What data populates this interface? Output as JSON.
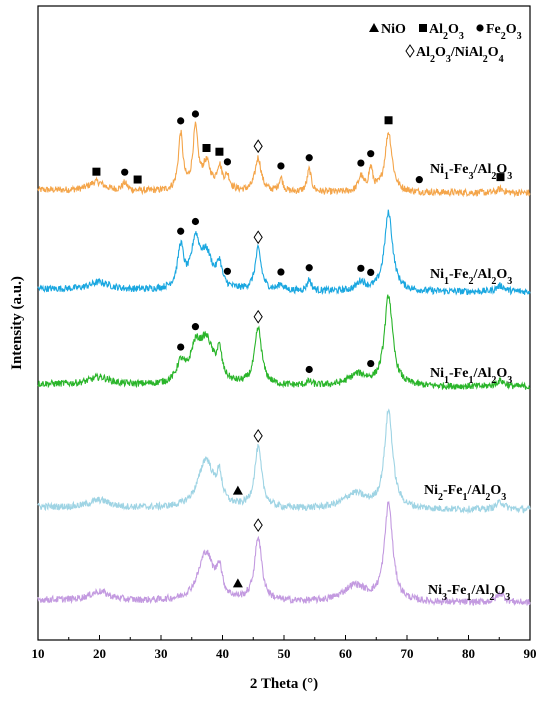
{
  "chart_data": {
    "type": "line",
    "title": "",
    "xlabel": "2 Theta (°)",
    "ylabel": "Intensity (a.u.)",
    "xlim": [
      10,
      90
    ],
    "xticks": [
      10,
      20,
      30,
      40,
      50,
      60,
      70,
      80,
      90
    ],
    "legend": [
      {
        "symbol": "triangle",
        "text": "NiO"
      },
      {
        "symbol": "square",
        "text": "Al2O3"
      },
      {
        "symbol": "circle",
        "text": "Fe2O3"
      },
      {
        "symbol": "diamond",
        "text": "Al2O3/NiAl2O4"
      }
    ],
    "series": [
      {
        "name": "Ni1-Fe3/Al2O3",
        "color": "#f4a54a",
        "baseline_order": 4,
        "peaks": [
          {
            "x": 19.5,
            "h": 0.12,
            "w": 1.5
          },
          {
            "x": 24.1,
            "h": 0.1,
            "w": 0.5
          },
          {
            "x": 33.2,
            "h": 0.75,
            "w": 0.45
          },
          {
            "x": 35.6,
            "h": 0.8,
            "w": 0.5
          },
          {
            "x": 37.4,
            "h": 0.35,
            "w": 0.8
          },
          {
            "x": 39.5,
            "h": 0.3,
            "w": 0.5
          },
          {
            "x": 40.8,
            "h": 0.18,
            "w": 0.5
          },
          {
            "x": 45.8,
            "h": 0.45,
            "w": 0.6
          },
          {
            "x": 49.5,
            "h": 0.18,
            "w": 0.4
          },
          {
            "x": 54.1,
            "h": 0.3,
            "w": 0.4
          },
          {
            "x": 62.5,
            "h": 0.2,
            "w": 0.5
          },
          {
            "x": 64.1,
            "h": 0.3,
            "w": 0.4
          },
          {
            "x": 67.0,
            "h": 0.8,
            "w": 0.7
          },
          {
            "x": 85.2,
            "h": 0.05,
            "w": 0.6
          }
        ],
        "markers": [
          {
            "x": 19.5,
            "symbol": "square"
          },
          {
            "x": 24.1,
            "symbol": "circle"
          },
          {
            "x": 26.2,
            "symbol": "square"
          },
          {
            "x": 33.2,
            "symbol": "circle"
          },
          {
            "x": 35.6,
            "symbol": "circle"
          },
          {
            "x": 37.4,
            "symbol": "square"
          },
          {
            "x": 39.5,
            "symbol": "square"
          },
          {
            "x": 40.8,
            "symbol": "circle"
          },
          {
            "x": 45.8,
            "symbol": "diamond"
          },
          {
            "x": 49.5,
            "symbol": "circle"
          },
          {
            "x": 54.1,
            "symbol": "circle"
          },
          {
            "x": 62.5,
            "symbol": "circle"
          },
          {
            "x": 64.1,
            "symbol": "circle"
          },
          {
            "x": 67.0,
            "symbol": "square"
          },
          {
            "x": 72.0,
            "symbol": "circle"
          },
          {
            "x": 85.2,
            "symbol": "square"
          }
        ]
      },
      {
        "name": "Ni1-Fe2/Al2O3",
        "color": "#1aa7e0",
        "baseline_order": 3,
        "peaks": [
          {
            "x": 20.0,
            "h": 0.1,
            "w": 2.0
          },
          {
            "x": 33.2,
            "h": 0.55,
            "w": 0.6
          },
          {
            "x": 35.6,
            "h": 0.6,
            "w": 0.8
          },
          {
            "x": 37.4,
            "h": 0.45,
            "w": 1.2
          },
          {
            "x": 39.5,
            "h": 0.3,
            "w": 0.5
          },
          {
            "x": 45.8,
            "h": 0.55,
            "w": 0.6
          },
          {
            "x": 49.5,
            "h": 0.08,
            "w": 0.5
          },
          {
            "x": 54.1,
            "h": 0.15,
            "w": 0.4
          },
          {
            "x": 62.5,
            "h": 0.12,
            "w": 0.8
          },
          {
            "x": 67.0,
            "h": 1.05,
            "w": 0.8
          },
          {
            "x": 85.2,
            "h": 0.08,
            "w": 0.8
          }
        ],
        "markers": [
          {
            "x": 33.2,
            "symbol": "circle"
          },
          {
            "x": 35.6,
            "symbol": "circle"
          },
          {
            "x": 40.8,
            "symbol": "circle"
          },
          {
            "x": 45.8,
            "symbol": "diamond"
          },
          {
            "x": 49.5,
            "symbol": "circle"
          },
          {
            "x": 54.1,
            "symbol": "circle"
          },
          {
            "x": 62.5,
            "symbol": "circle"
          },
          {
            "x": 64.1,
            "symbol": "circle"
          }
        ]
      },
      {
        "name": "Ni1-Fe1/Al2O3",
        "color": "#2ab52a",
        "baseline_order": 2,
        "peaks": [
          {
            "x": 20.0,
            "h": 0.1,
            "w": 2.0
          },
          {
            "x": 33.2,
            "h": 0.25,
            "w": 0.8
          },
          {
            "x": 35.6,
            "h": 0.4,
            "w": 1.0
          },
          {
            "x": 37.4,
            "h": 0.55,
            "w": 1.4
          },
          {
            "x": 39.5,
            "h": 0.35,
            "w": 0.5
          },
          {
            "x": 45.8,
            "h": 0.75,
            "w": 0.7
          },
          {
            "x": 54.1,
            "h": 0.05,
            "w": 0.5
          },
          {
            "x": 62.0,
            "h": 0.15,
            "w": 1.8
          },
          {
            "x": 67.0,
            "h": 1.2,
            "w": 0.8
          },
          {
            "x": 85.2,
            "h": 0.08,
            "w": 0.8
          }
        ],
        "markers": [
          {
            "x": 33.2,
            "symbol": "circle"
          },
          {
            "x": 35.6,
            "symbol": "circle"
          },
          {
            "x": 45.8,
            "symbol": "diamond"
          },
          {
            "x": 54.1,
            "symbol": "circle"
          },
          {
            "x": 64.1,
            "symbol": "circle"
          }
        ]
      },
      {
        "name": "Ni2-Fe1/Al2O3",
        "color": "#9fd4e4",
        "baseline_order": 1,
        "peaks": [
          {
            "x": 20.0,
            "h": 0.1,
            "w": 2.0
          },
          {
            "x": 37.3,
            "h": 0.65,
            "w": 1.5
          },
          {
            "x": 39.5,
            "h": 0.35,
            "w": 0.5
          },
          {
            "x": 45.8,
            "h": 0.8,
            "w": 0.7
          },
          {
            "x": 61.5,
            "h": 0.2,
            "w": 2.2
          },
          {
            "x": 67.0,
            "h": 1.3,
            "w": 0.8
          },
          {
            "x": 85.2,
            "h": 0.1,
            "w": 0.8
          }
        ],
        "markers": [
          {
            "x": 42.5,
            "symbol": "triangle"
          },
          {
            "x": 45.8,
            "symbol": "diamond"
          }
        ]
      },
      {
        "name": "Ni3-Fe1/Al2O3",
        "color": "#c39ae0",
        "baseline_order": 0,
        "peaks": [
          {
            "x": 20.0,
            "h": 0.12,
            "w": 2.0
          },
          {
            "x": 37.3,
            "h": 0.65,
            "w": 1.5
          },
          {
            "x": 39.5,
            "h": 0.35,
            "w": 0.5
          },
          {
            "x": 45.8,
            "h": 0.85,
            "w": 0.7
          },
          {
            "x": 61.5,
            "h": 0.22,
            "w": 2.2
          },
          {
            "x": 67.0,
            "h": 1.3,
            "w": 0.8
          },
          {
            "x": 85.2,
            "h": 0.12,
            "w": 0.8
          }
        ],
        "markers": [
          {
            "x": 42.5,
            "symbol": "triangle"
          },
          {
            "x": 45.8,
            "symbol": "diamond"
          }
        ]
      }
    ],
    "grid": false,
    "legend_placement": "top-right"
  }
}
